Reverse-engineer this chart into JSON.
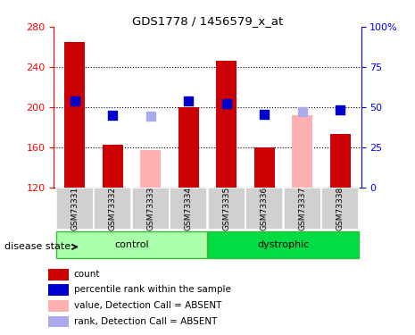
{
  "title": "GDS1778 / 1456579_x_at",
  "samples": [
    "GSM73331",
    "GSM73332",
    "GSM73333",
    "GSM73334",
    "GSM73335",
    "GSM73336",
    "GSM73337",
    "GSM73338"
  ],
  "bar_values": [
    265,
    163,
    null,
    200,
    246,
    160,
    null,
    173
  ],
  "bar_absent_values": [
    null,
    null,
    157,
    null,
    null,
    null,
    192,
    null
  ],
  "bar_color_present": "#cc0000",
  "bar_color_absent": "#ffb0b0",
  "dot_values_present": [
    206,
    192,
    null,
    206,
    204,
    193,
    null,
    197
  ],
  "dot_values_absent": [
    null,
    null,
    191,
    null,
    null,
    null,
    196,
    null
  ],
  "dot_color_present": "#0000cc",
  "dot_color_absent": "#aaaaee",
  "ylim": [
    120,
    280
  ],
  "yticks": [
    120,
    160,
    200,
    240,
    280
  ],
  "y2ticks": [
    0,
    25,
    50,
    75,
    100
  ],
  "y2labels": [
    "0",
    "25",
    "50",
    "75",
    "100%"
  ],
  "bar_width": 0.55,
  "dot_size": 55,
  "legend_items": [
    {
      "label": "count",
      "color": "#cc0000"
    },
    {
      "label": "percentile rank within the sample",
      "color": "#0000cc"
    },
    {
      "label": "value, Detection Call = ABSENT",
      "color": "#ffb0b0"
    },
    {
      "label": "rank, Detection Call = ABSENT",
      "color": "#aaaaee"
    }
  ]
}
